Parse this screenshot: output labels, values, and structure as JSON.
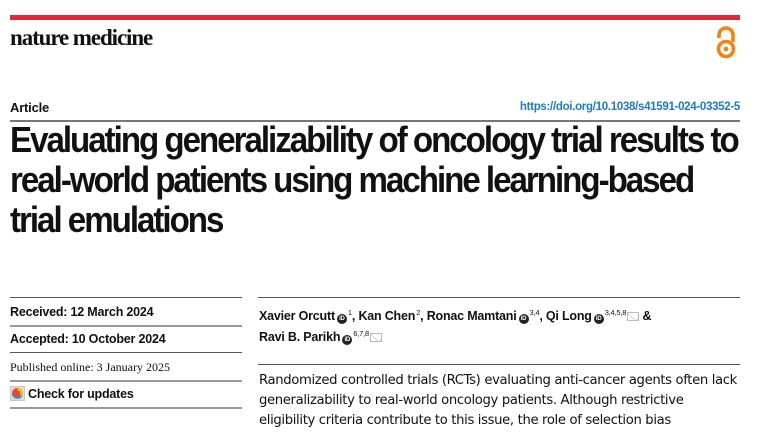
{
  "journal": {
    "name": "nature medicine",
    "accent_color": "#e3263b",
    "open_access_icon": "open-access-lock-icon",
    "open_access_color": "#f68212"
  },
  "article": {
    "type_label": "Article",
    "doi": "https://doi.org/10.1038/s41591-024-03352-5",
    "title": "Evaluating generalizability of oncology trial results to real-world patients using machine learning-based trial emulations"
  },
  "dates": {
    "received": "Received: 12 March 2024",
    "accepted": "Accepted: 10 October 2024",
    "published": "Published online: 3 January 2025",
    "check_updates": "Check for updates"
  },
  "authors": [
    {
      "name": "Xavier Orcutt",
      "orcid": true,
      "affiliations": "1",
      "email": false,
      "sep": ", "
    },
    {
      "name": "Kan Chen",
      "orcid": false,
      "affiliations": "2",
      "email": false,
      "sep": ", "
    },
    {
      "name": "Ronac Mamtani",
      "orcid": true,
      "affiliations": "3,4",
      "email": false,
      "sep": ", "
    },
    {
      "name": "Qi Long",
      "orcid": true,
      "affiliations": "3,4,5,8",
      "email": true,
      "sep": " & "
    },
    {
      "name": "Ravi B. Parikh",
      "orcid": true,
      "affiliations": "6,7,8",
      "email": true,
      "sep": ""
    }
  ],
  "abstract": {
    "text": "Randomized controlled trials (RCTs) evaluating anti-cancer agents often lack generalizability to real-world oncology patients. Although restrictive eligibility criteria contribute to this issue, the role of selection bias"
  }
}
